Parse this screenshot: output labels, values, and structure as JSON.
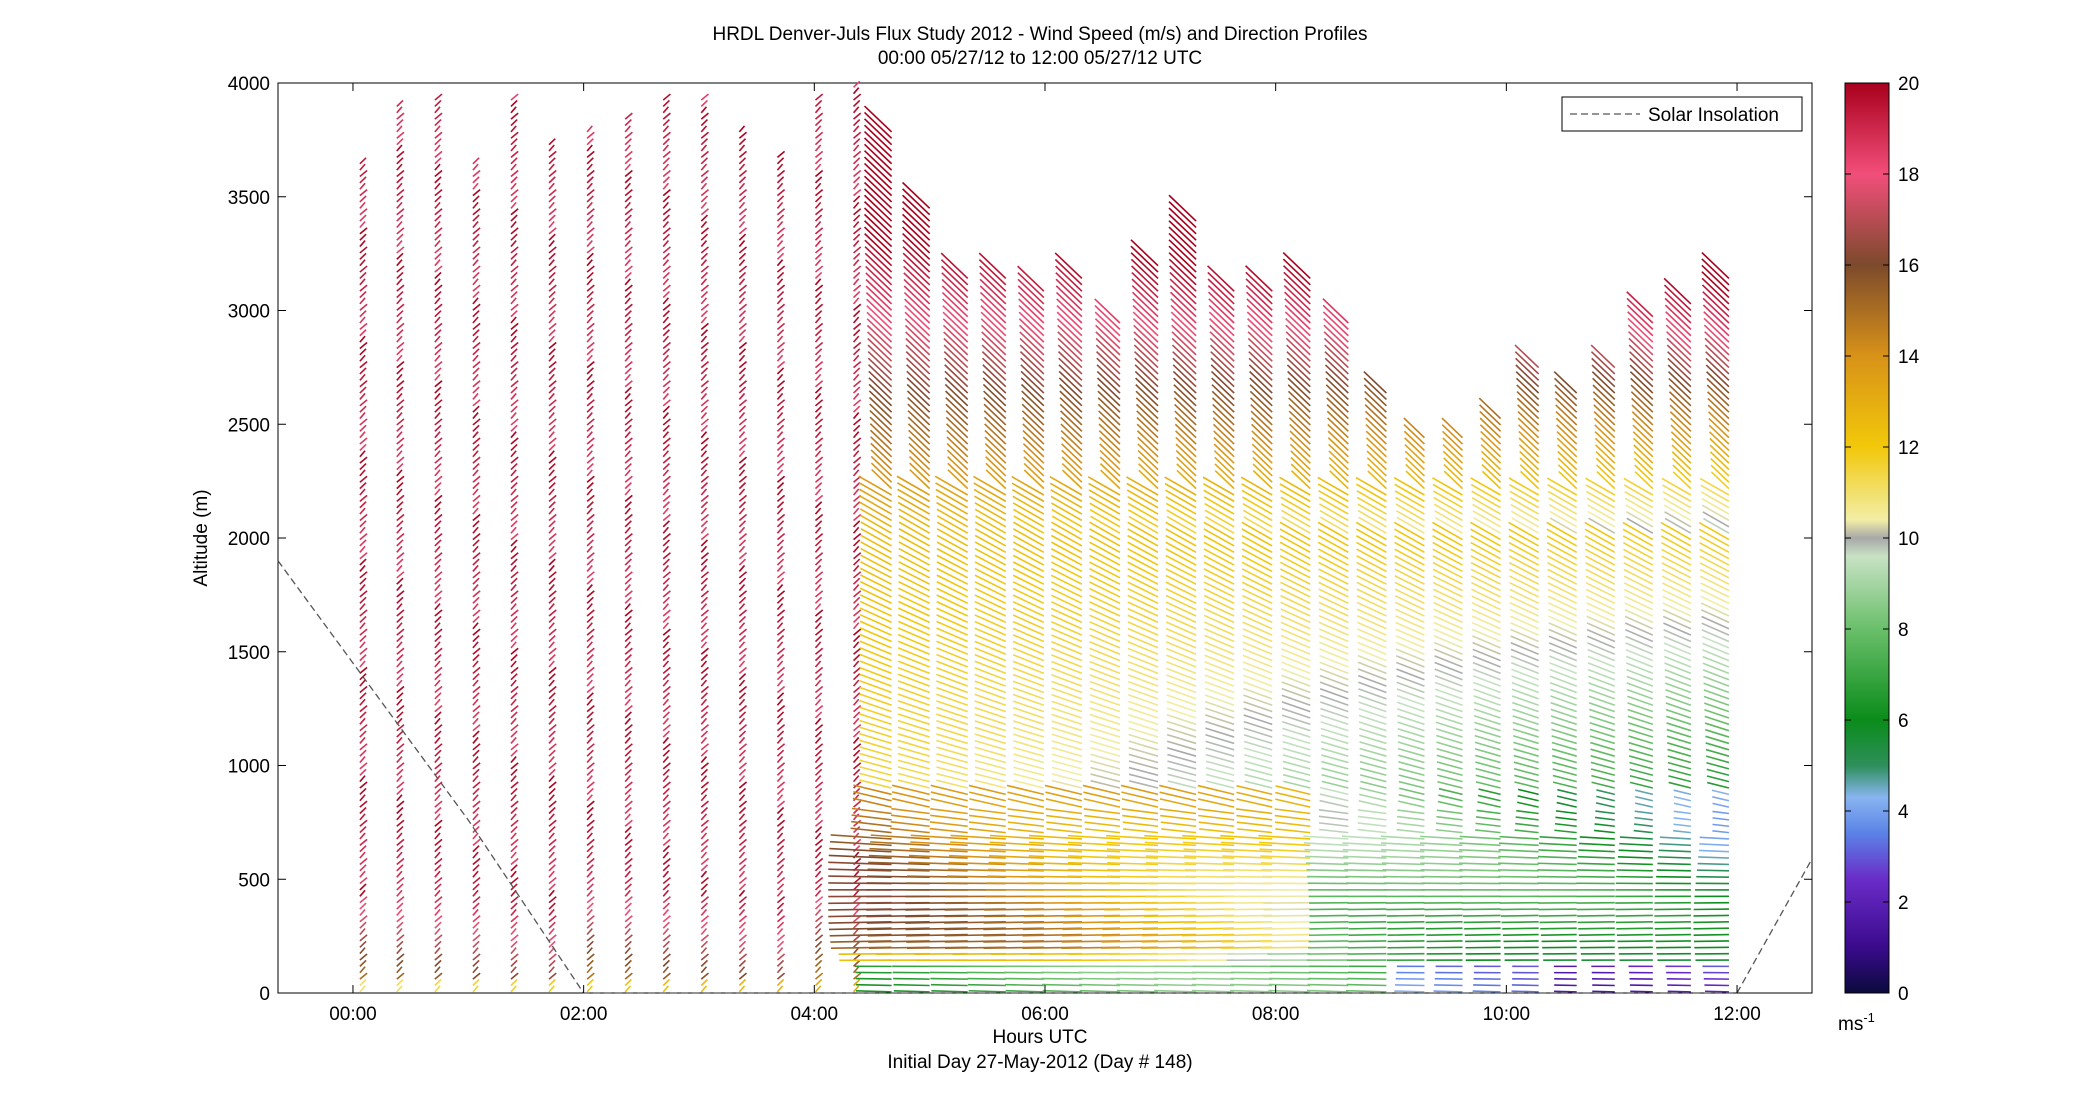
{
  "chart_data": {
    "type": "wind-barb-profile",
    "title": "HRDL Denver-Juls Flux Study 2012 - Wind Speed (m/s) and Direction Profiles",
    "subtitle": "00:00 05/27/12 to 12:00 05/27/12  UTC",
    "xlabel": "Hours UTC",
    "xlabel2": "Initial Day 27-May-2012 (Day # 148)",
    "ylabel": "Altitude (m)",
    "xlim": [
      -0.65,
      12.65
    ],
    "ylim": [
      0,
      4000
    ],
    "x_ticks": [
      0,
      2,
      4,
      6,
      8,
      10,
      12
    ],
    "x_tick_labels": [
      "00:00",
      "02:00",
      "04:00",
      "06:00",
      "08:00",
      "10:00",
      "12:00"
    ],
    "y_ticks": [
      0,
      500,
      1000,
      1500,
      2000,
      2500,
      3000,
      3500,
      4000
    ],
    "y_tick_labels": [
      "0",
      "500",
      "1000",
      "1500",
      "2000",
      "2500",
      "3000",
      "3500",
      "4000"
    ],
    "legend": {
      "position": "top-right",
      "entries": [
        "Solar Insolation"
      ]
    },
    "colorbar": {
      "range": [
        0,
        20
      ],
      "ticks": [
        0,
        2,
        4,
        6,
        8,
        10,
        12,
        14,
        16,
        18,
        20
      ],
      "tick_labels": [
        "0",
        "2",
        "4",
        "6",
        "8",
        "10",
        "12",
        "14",
        "16",
        "18",
        "20"
      ],
      "unit": "ms",
      "unit_sup": "-1",
      "stops": [
        {
          "v": 0,
          "color": "#0a0a3c"
        },
        {
          "v": 1,
          "color": "#3a0a8c"
        },
        {
          "v": 2.5,
          "color": "#6a2cc8"
        },
        {
          "v": 3.5,
          "color": "#5a82e6"
        },
        {
          "v": 4.3,
          "color": "#88b4f0"
        },
        {
          "v": 5,
          "color": "#2e8f5a"
        },
        {
          "v": 6,
          "color": "#0a8c1a"
        },
        {
          "v": 8,
          "color": "#6abf6a"
        },
        {
          "v": 9.6,
          "color": "#c8e2c4"
        },
        {
          "v": 10,
          "color": "#a8a8a8"
        },
        {
          "v": 10.4,
          "color": "#f2eea6"
        },
        {
          "v": 12,
          "color": "#f2c80a"
        },
        {
          "v": 14,
          "color": "#d89218"
        },
        {
          "v": 16,
          "color": "#7c4a2c"
        },
        {
          "v": 18,
          "color": "#f24e7a"
        },
        {
          "v": 20,
          "color": "#a8001c"
        }
      ]
    },
    "series": [
      {
        "name": "Solar Insolation",
        "style": "dashed",
        "color": "#555555",
        "x": [
          -0.65,
          0,
          1,
          2,
          2.03,
          12,
          12.65
        ],
        "y": [
          1900,
          1450,
          760,
          0,
          0,
          0,
          590
        ]
      }
    ],
    "profiles": [
      {
        "t": 0.06,
        "top": 3650
      },
      {
        "t": 0.38,
        "top": 3900
      },
      {
        "t": 0.71,
        "top": 3950
      },
      {
        "t": 1.04,
        "top": 3650
      },
      {
        "t": 1.37,
        "top": 3950
      },
      {
        "t": 1.7,
        "top": 3750
      },
      {
        "t": 2.03,
        "top": 3800
      },
      {
        "t": 2.36,
        "top": 3850
      },
      {
        "t": 2.69,
        "top": 3950
      },
      {
        "t": 3.02,
        "top": 3950
      },
      {
        "t": 3.35,
        "top": 3800
      },
      {
        "t": 3.68,
        "top": 3700
      },
      {
        "t": 4.01,
        "top": 3950
      },
      {
        "t": 4.34,
        "top": 4000
      },
      {
        "t": 4.67,
        "top": 3800
      },
      {
        "t": 5.0,
        "top": 3450
      },
      {
        "t": 5.33,
        "top": 3150
      },
      {
        "t": 5.66,
        "top": 3150
      },
      {
        "t": 5.99,
        "top": 3100
      },
      {
        "t": 6.32,
        "top": 3150
      },
      {
        "t": 6.65,
        "top": 2950
      },
      {
        "t": 6.98,
        "top": 3200
      },
      {
        "t": 7.31,
        "top": 3400
      },
      {
        "t": 7.64,
        "top": 3100
      },
      {
        "t": 7.97,
        "top": 3100
      },
      {
        "t": 8.3,
        "top": 3150
      },
      {
        "t": 8.63,
        "top": 2950
      },
      {
        "t": 8.96,
        "top": 2650
      },
      {
        "t": 9.29,
        "top": 2450
      },
      {
        "t": 9.62,
        "top": 2450
      },
      {
        "t": 9.95,
        "top": 2550
      },
      {
        "t": 10.28,
        "top": 2750
      },
      {
        "t": 10.61,
        "top": 2650
      },
      {
        "t": 10.94,
        "top": 2750
      },
      {
        "t": 11.27,
        "top": 3000
      },
      {
        "t": 11.6,
        "top": 3050
      },
      {
        "t": 11.93,
        "top": 3150
      }
    ]
  }
}
